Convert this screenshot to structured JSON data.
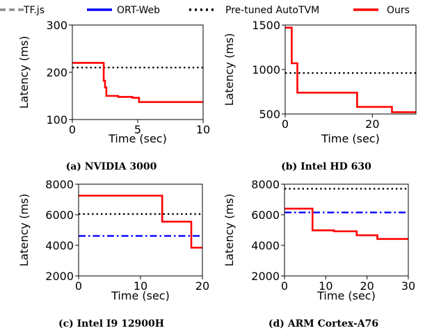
{
  "legend": [
    {
      "label": "TF.js",
      "color": "#8c8c8c",
      "style": "dashed"
    },
    {
      "label": "ORT-Web",
      "color": "#0000ff",
      "style": "solid"
    },
    {
      "label": "Pre-tuned AutoTVM",
      "color": "#000000",
      "style": "dotted"
    },
    {
      "label": "Ours",
      "color": "#ff0000",
      "style": "solid"
    }
  ],
  "chart_data": [
    {
      "type": "line",
      "caption": "(a) NVIDIA 3000",
      "xlabel": "Time (sec)",
      "ylabel": "Latency (ms)",
      "xlim": [
        0,
        10
      ],
      "ylim": [
        100,
        300
      ],
      "xticks": [
        0,
        5,
        10
      ],
      "yticks": [
        100,
        200,
        300
      ],
      "grid": false,
      "series": [
        {
          "name": "Pre-tuned AutoTVM",
          "color": "#000000",
          "style": "dotted",
          "x": [
            0,
            10
          ],
          "y": [
            210,
            210
          ]
        },
        {
          "name": "Ours",
          "color": "#ff0000",
          "style": "solid",
          "step": true,
          "x": [
            0,
            2.4,
            2.5,
            2.6,
            3.5,
            4.6,
            5.1,
            10
          ],
          "y": [
            220,
            182,
            168,
            150,
            148,
            146,
            137,
            137
          ]
        }
      ]
    },
    {
      "type": "line",
      "caption": "(b) Intel HD 630",
      "xlabel": "Time (sec)",
      "ylabel": "Latency (ms)",
      "xlim": [
        0,
        30
      ],
      "ylim": [
        500,
        1500
      ],
      "xticks": [
        0,
        20
      ],
      "yticks": [
        500,
        1000,
        1500
      ],
      "grid": false,
      "series": [
        {
          "name": "Pre-tuned AutoTVM",
          "color": "#000000",
          "style": "dotted",
          "x": [
            0,
            30
          ],
          "y": [
            960,
            960
          ]
        },
        {
          "name": "Ours",
          "color": "#ff0000",
          "style": "solid",
          "step": true,
          "x": [
            0,
            1.5,
            2.8,
            16.5,
            24.5,
            30
          ],
          "y": [
            1470,
            1070,
            740,
            580,
            520,
            520
          ]
        }
      ]
    },
    {
      "type": "line",
      "caption": "(c) Intel I9 12900H",
      "xlabel": "Time (sec)",
      "ylabel": "Latency (ms)",
      "xlim": [
        0,
        20
      ],
      "ylim": [
        2000,
        8000
      ],
      "xticks": [
        0,
        10,
        20
      ],
      "yticks": [
        2000,
        4000,
        6000,
        8000
      ],
      "grid": false,
      "series": [
        {
          "name": "Pre-tuned AutoTVM",
          "color": "#000000",
          "style": "dotted",
          "x": [
            0,
            20
          ],
          "y": [
            6050,
            6050
          ]
        },
        {
          "name": "ORT-Web",
          "color": "#0000ff",
          "style": "dashdot",
          "x": [
            0,
            20
          ],
          "y": [
            4620,
            4620
          ]
        },
        {
          "name": "Ours",
          "color": "#ff0000",
          "style": "solid",
          "step": true,
          "x": [
            0,
            13.5,
            18.2,
            20
          ],
          "y": [
            7250,
            5550,
            3850,
            3850
          ]
        }
      ]
    },
    {
      "type": "line",
      "caption": "(d) ARM Cortex-A76",
      "xlabel": "Time (sec)",
      "ylabel": "Latency (ms)",
      "xlim": [
        0,
        30
      ],
      "ylim": [
        2000,
        8000
      ],
      "xticks": [
        0,
        10,
        20,
        30
      ],
      "yticks": [
        2000,
        4000,
        6000,
        8000
      ],
      "grid": false,
      "series": [
        {
          "name": "Pre-tuned AutoTVM",
          "color": "#000000",
          "style": "dotted",
          "x": [
            0,
            30
          ],
          "y": [
            7700,
            7700
          ]
        },
        {
          "name": "ORT-Web",
          "color": "#0000ff",
          "style": "dashdot",
          "x": [
            0,
            30
          ],
          "y": [
            6150,
            6150
          ]
        },
        {
          "name": "Ours",
          "color": "#ff0000",
          "style": "solid",
          "step": true,
          "x": [
            0,
            6.8,
            12,
            17.5,
            22.5,
            30
          ],
          "y": [
            6400,
            4980,
            4920,
            4660,
            4420,
            4420
          ]
        }
      ]
    }
  ]
}
